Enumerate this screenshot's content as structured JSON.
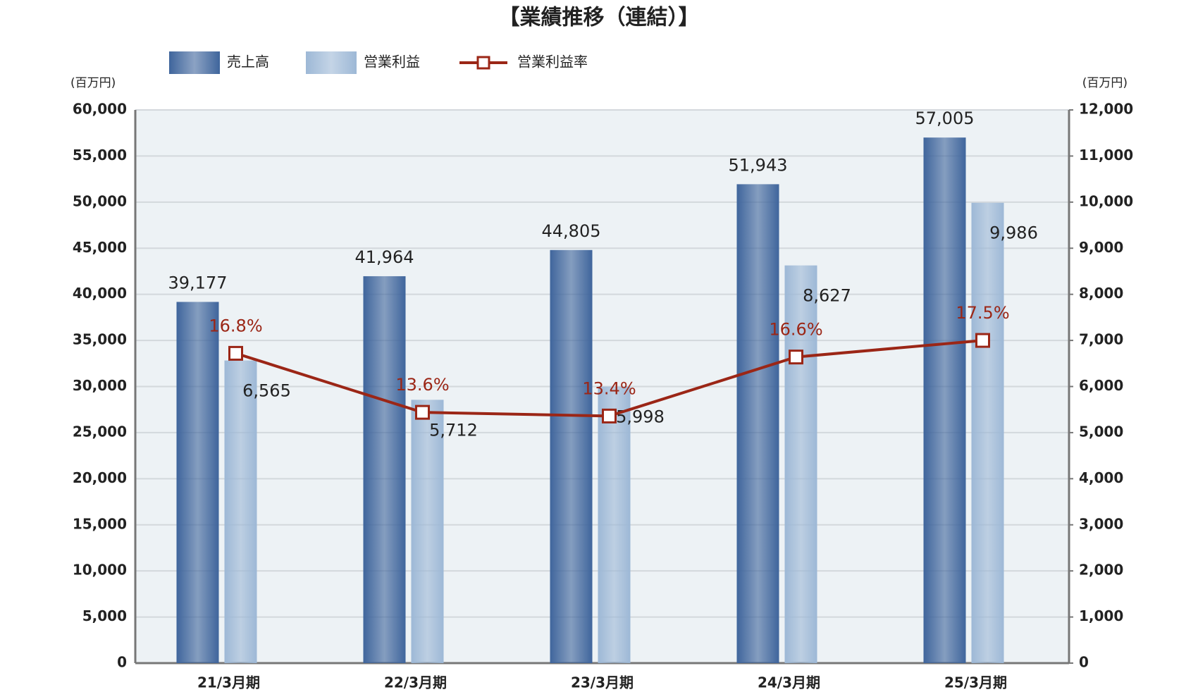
{
  "chart_data": {
    "type": "bar",
    "title": "【業績推移（連結）】",
    "y_unit": "(百万円)",
    "y2_unit": "(百万円)",
    "categories": [
      "21/3月期",
      "22/3月期",
      "23/3月期",
      "24/3月期",
      "25/3月期"
    ],
    "series": [
      {
        "name": "売上高",
        "type": "bar",
        "axis": "y",
        "color": "#3f659c",
        "values": [
          39177,
          41964,
          44805,
          51943,
          57005
        ],
        "value_labels": [
          "39,177",
          "41,964",
          "44,805",
          "51,943",
          "57,005"
        ]
      },
      {
        "name": "営業利益",
        "type": "bar",
        "axis": "y2",
        "color": "#9db8d6",
        "values": [
          6565,
          5712,
          5998,
          8627,
          9986
        ],
        "value_labels": [
          "6,565",
          "5,712",
          "5,998",
          "8,627",
          "9,986"
        ]
      },
      {
        "name": "営業利益率",
        "type": "line",
        "axis": "y3",
        "color": "#9b2616",
        "values": [
          16.8,
          13.6,
          13.4,
          16.6,
          17.5
        ],
        "value_labels": [
          "16.8%",
          "13.6%",
          "13.4%",
          "16.6%",
          "17.5%"
        ]
      }
    ],
    "ylim": [
      0,
      60000
    ],
    "yticks": [
      0,
      {
        "value": 5000,
        "label": "5,000"
      },
      {
        "value": 10000,
        "label": "10,000"
      },
      {
        "value": 15000,
        "label": "15,000"
      },
      {
        "value": 20000,
        "label": "20,000"
      },
      {
        "value": 25000,
        "label": "25,000"
      },
      {
        "value": 30000,
        "label": "30,000"
      },
      {
        "value": 35000,
        "label": "35,000"
      },
      {
        "value": 40000,
        "label": "40,000"
      },
      {
        "value": 45000,
        "label": "45,000"
      },
      {
        "value": 50000,
        "label": "50,000"
      },
      {
        "value": 55000,
        "label": "55,000"
      },
      {
        "value": 60000,
        "label": "60,000"
      }
    ],
    "y2lim": [
      0,
      12000
    ],
    "y2ticks": [
      0,
      {
        "value": 1000,
        "label": "1,000"
      },
      {
        "value": 2000,
        "label": "2,000"
      },
      {
        "value": 3000,
        "label": "3,000"
      },
      {
        "value": 4000,
        "label": "4,000"
      },
      {
        "value": 5000,
        "label": "5,000"
      },
      {
        "value": 6000,
        "label": "6,000"
      },
      {
        "value": 7000,
        "label": "7,000"
      },
      {
        "value": 8000,
        "label": "8,000"
      },
      {
        "value": 9000,
        "label": "9,000"
      },
      {
        "value": 10000,
        "label": "10,000"
      },
      {
        "value": 11000,
        "label": "11,000"
      },
      {
        "value": 12000,
        "label": "12,000"
      }
    ],
    "y3lim": [
      0,
      30
    ],
    "grid": true
  }
}
